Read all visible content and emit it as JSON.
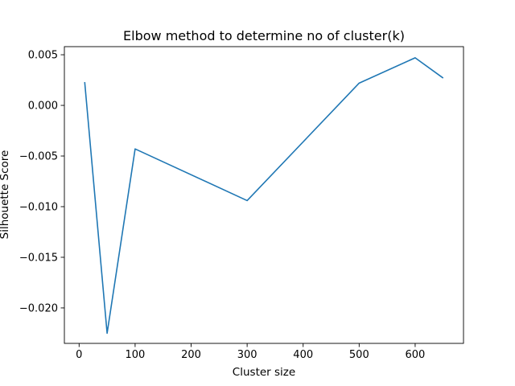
{
  "chart_data": {
    "type": "line",
    "title": "Elbow method to determine no of cluster(k)",
    "xlabel": "Cluster size",
    "ylabel": "Silhouette Score",
    "x": [
      10,
      50,
      100,
      300,
      500,
      600,
      650
    ],
    "series": [
      {
        "values": [
          0.0023,
          -0.0225,
          -0.0043,
          -0.0094,
          0.0022,
          0.0047,
          0.0027
        ],
        "color": "#1f77b4"
      }
    ],
    "xlim": [
      -26.3,
      686.3
    ],
    "ylim": [
      -0.0235,
      0.0058
    ],
    "xticks": [
      0,
      100,
      200,
      300,
      400,
      500,
      600
    ],
    "xtick_labels": [
      "0",
      "100",
      "200",
      "300",
      "400",
      "500",
      "600"
    ],
    "yticks": [
      0.005,
      0.0,
      -0.005,
      -0.01,
      -0.015,
      -0.02
    ],
    "ytick_labels": [
      "0.005",
      "0.000",
      "−0.005",
      "−0.010",
      "−0.015",
      "−0.020"
    ],
    "grid": false,
    "legend": "none"
  }
}
